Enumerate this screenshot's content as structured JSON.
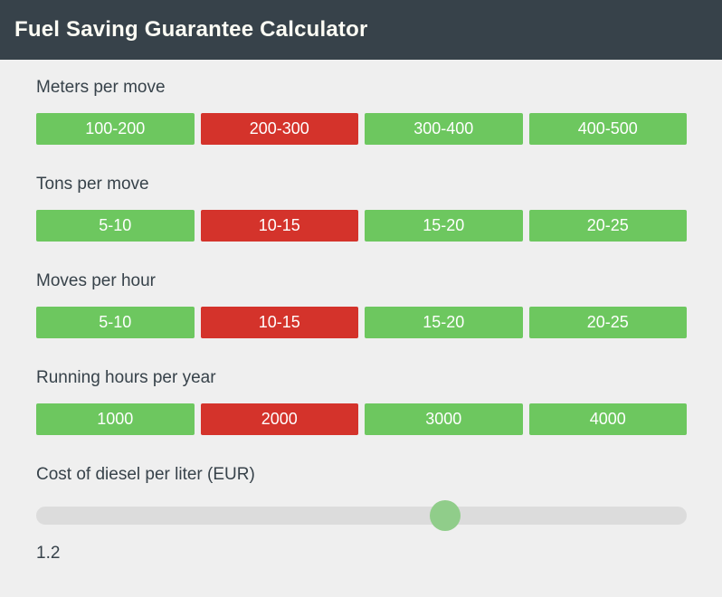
{
  "header": {
    "title": "Fuel Saving Guarantee Calculator"
  },
  "groups": [
    {
      "label": "Meters per move",
      "options": [
        "100-200",
        "200-300",
        "300-400",
        "400-500"
      ],
      "selected_index": 1
    },
    {
      "label": "Tons per move",
      "options": [
        "5-10",
        "10-15",
        "15-20",
        "20-25"
      ],
      "selected_index": 1
    },
    {
      "label": "Moves per hour",
      "options": [
        "5-10",
        "10-15",
        "15-20",
        "20-25"
      ],
      "selected_index": 1
    },
    {
      "label": "Running hours per year",
      "options": [
        "1000",
        "2000",
        "3000",
        "4000"
      ],
      "selected_index": 1
    }
  ],
  "slider": {
    "label": "Cost of diesel per liter (EUR)",
    "value": "1.2",
    "thumb_percent": 62.9
  },
  "colors": {
    "green": "#6dc75f",
    "red": "#d4332b",
    "slider_thumb": "#90cd8a",
    "header_bg": "#37424a",
    "page_bg": "#efefef",
    "track": "#dcdcdc",
    "text": "#37424a",
    "title": "#fcfcf4"
  }
}
